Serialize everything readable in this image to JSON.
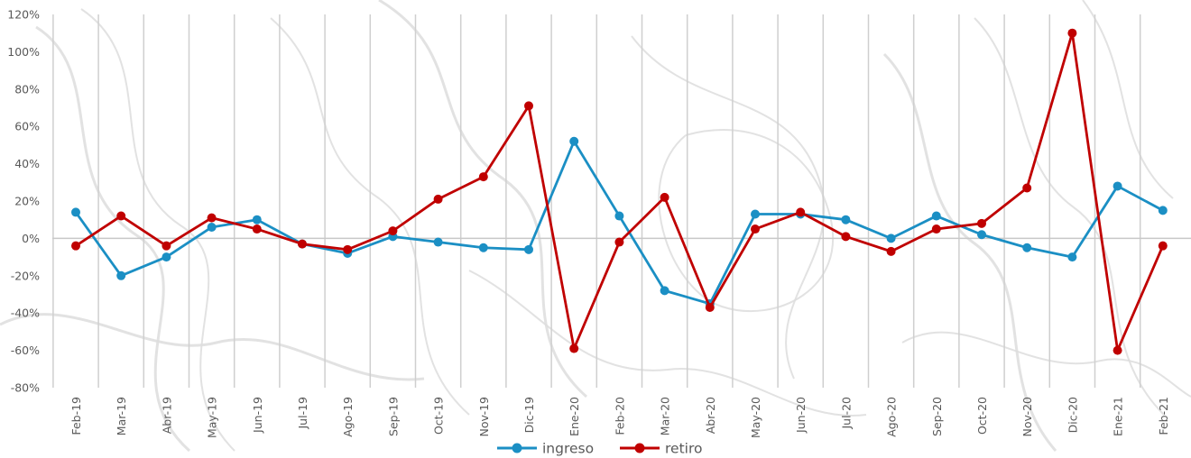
{
  "chart_data": {
    "type": "line",
    "categories": [
      "Feb-19",
      "Mar-19",
      "Abr-19",
      "May-19",
      "Jun-19",
      "Jul-19",
      "Ago-19",
      "Sep-19",
      "Oct-19",
      "Nov-19",
      "Dic-19",
      "Ene-20",
      "Feb-20",
      "Mar-20",
      "Abr-20",
      "May-20",
      "Jun-20",
      "Jul-20",
      "Ago-20",
      "Sep-20",
      "Oct-20",
      "Nov-20",
      "Dic-20",
      "Ene-21",
      "Feb-21"
    ],
    "series": [
      {
        "name": "ingreso",
        "color": "#1b8fc4",
        "values": [
          14,
          -20,
          -10,
          6,
          10,
          -3,
          -8,
          1,
          -2,
          -5,
          -6,
          52,
          12,
          -28,
          -35,
          13,
          13,
          10,
          0,
          12,
          2,
          -5,
          -10,
          28,
          15
        ]
      },
      {
        "name": "retiro",
        "color": "#c00000",
        "values": [
          -4,
          12,
          -4,
          11,
          5,
          -3,
          -6,
          4,
          21,
          33,
          71,
          -59,
          -2,
          22,
          -37,
          5,
          14,
          1,
          -7,
          5,
          8,
          27,
          110,
          -60,
          -4
        ]
      }
    ],
    "y_ticks": [
      "120%",
      "100%",
      "80%",
      "60%",
      "40%",
      "20%",
      "0%",
      "-20%",
      "-40%",
      "-60%",
      "-80%"
    ],
    "ylim": [
      -80,
      120
    ],
    "y_unit": "%",
    "grid": "vertical",
    "legend": "bottom-center"
  }
}
